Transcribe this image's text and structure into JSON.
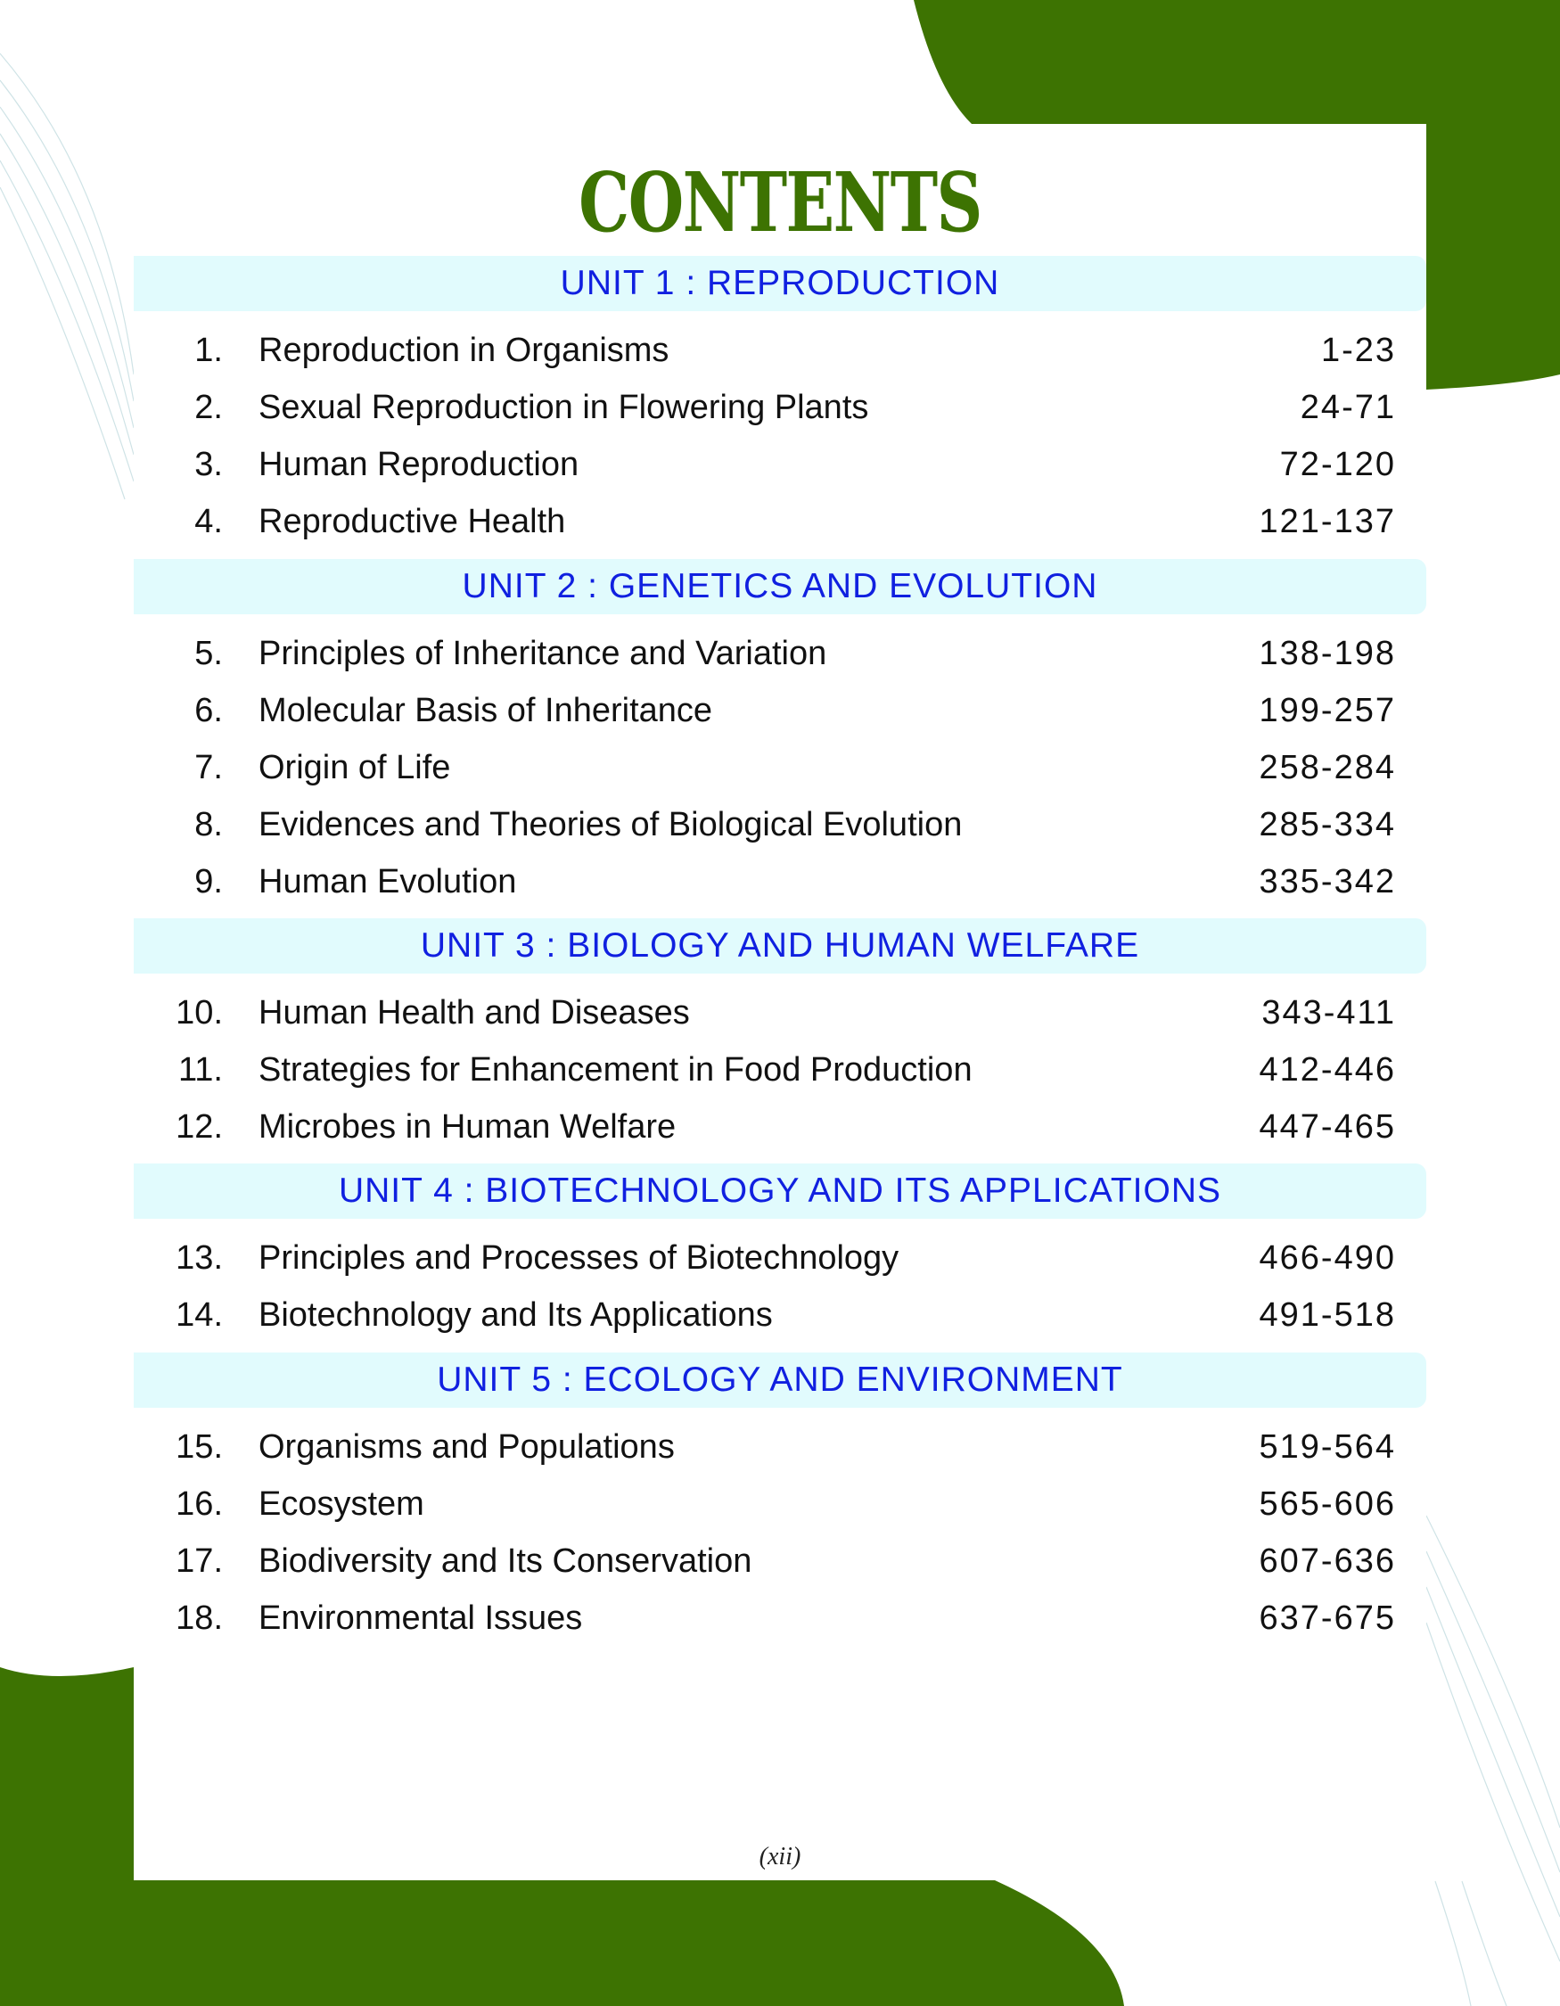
{
  "title": "CONTENTS",
  "colors": {
    "accent_green": "#3d7302",
    "unit_text": "#1020e0",
    "unit_band": "#e1fbfd"
  },
  "units": [
    {
      "label": "UNIT  1 : REPRODUCTION",
      "chapters": [
        {
          "num": "1.",
          "title": "Reproduction in Organisms",
          "pages": "1-23"
        },
        {
          "num": "2.",
          "title": "Sexual Reproduction in Flowering Plants",
          "pages": "24-71"
        },
        {
          "num": "3.",
          "title": "Human Reproduction",
          "pages": "72-120"
        },
        {
          "num": "4.",
          "title": "Reproductive Health",
          "pages": "121-137"
        }
      ]
    },
    {
      "label": "UNIT  2 : GENETICS AND EVOLUTION",
      "chapters": [
        {
          "num": "5.",
          "title": "Principles of Inheritance and Variation",
          "pages": "138-198"
        },
        {
          "num": "6.",
          "title": "Molecular Basis of Inheritance",
          "pages": "199-257"
        },
        {
          "num": "7.",
          "title": "Origin of Life",
          "pages": "258-284"
        },
        {
          "num": "8.",
          "title": "Evidences and Theories of Biological Evolution",
          "pages": "285-334"
        },
        {
          "num": "9.",
          "title": "Human Evolution",
          "pages": "335-342"
        }
      ]
    },
    {
      "label": "UNIT  3 : BIOLOGY AND HUMAN WELFARE",
      "chapters": [
        {
          "num": "10.",
          "title": "Human Health and Diseases",
          "pages": "343-411"
        },
        {
          "num": "11.",
          "title": "Strategies for Enhancement in Food Production",
          "pages": "412-446"
        },
        {
          "num": "12.",
          "title": "Microbes in Human Welfare",
          "pages": "447-465"
        }
      ]
    },
    {
      "label": "UNIT  4 : BIOTECHNOLOGY AND ITS APPLICATIONS",
      "chapters": [
        {
          "num": "13.",
          "title": "Principles and Processes of Biotechnology",
          "pages": "466-490"
        },
        {
          "num": "14.",
          "title": "Biotechnology and Its Applications",
          "pages": "491-518"
        }
      ]
    },
    {
      "label": "UNIT  5 : ECOLOGY AND ENVIRONMENT",
      "chapters": [
        {
          "num": "15.",
          "title": "Organisms and Populations",
          "pages": "519-564"
        },
        {
          "num": "16.",
          "title": "Ecosystem",
          "pages": "565-606"
        },
        {
          "num": "17.",
          "title": "Biodiversity and Its Conservation",
          "pages": "607-636"
        },
        {
          "num": "18.",
          "title": "Environmental Issues",
          "pages": "637-675"
        }
      ]
    }
  ],
  "footer": "(xii)"
}
